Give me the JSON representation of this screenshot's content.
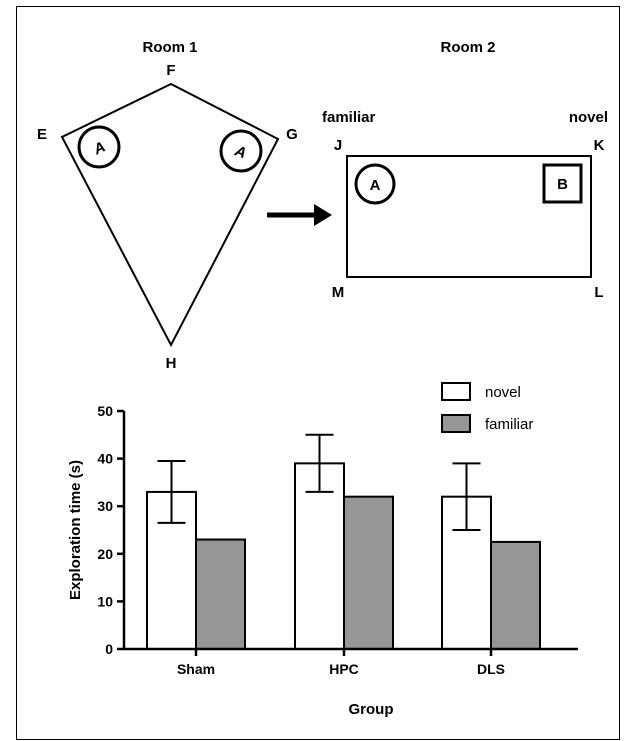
{
  "diagram": {
    "room1": {
      "title": "Room 1",
      "corners": [
        "E",
        "F",
        "G",
        "H"
      ],
      "objects": [
        "A",
        "A"
      ]
    },
    "room2": {
      "title": "Room 2",
      "corners": [
        "J",
        "K",
        "L",
        "M"
      ],
      "left_label": "familiar",
      "right_label": "novel",
      "objects": [
        "A",
        "B"
      ]
    }
  },
  "chart_data": {
    "type": "bar",
    "categories": [
      "Sham",
      "HPC",
      "DLS"
    ],
    "series": [
      {
        "name": "novel",
        "values": [
          33,
          39,
          32
        ],
        "error": [
          6.5,
          6,
          7
        ],
        "color": "#ffffff"
      },
      {
        "name": "familiar",
        "values": [
          23,
          32,
          22.5
        ],
        "color": "#969696"
      }
    ],
    "xlabel": "Group",
    "ylabel": "Exploration time (s)",
    "ylim": [
      0,
      50
    ],
    "yticks": [
      0,
      10,
      20,
      30,
      40,
      50
    ],
    "grid": false,
    "legend": "top-right"
  }
}
